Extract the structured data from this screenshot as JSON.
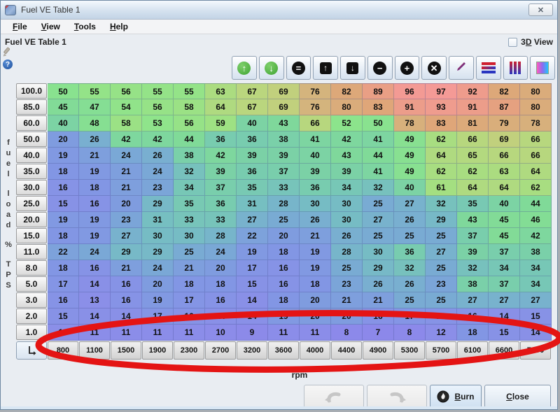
{
  "window": {
    "title": "Fuel VE Table 1",
    "close_icon": "✕",
    "app_icon": "fuel-table-app-icon"
  },
  "menu": {
    "items": [
      {
        "label": "File",
        "u": 0
      },
      {
        "label": "View",
        "u": 0
      },
      {
        "label": "Tools",
        "u": 0
      },
      {
        "label": "Help",
        "u": 0
      }
    ]
  },
  "header": {
    "title": "Fuel VE Table 1",
    "view3d_label": "3D View",
    "view3d_underline": 1,
    "view3d_checked": false
  },
  "rail": {
    "icons": [
      "edit-pencil-icon",
      "help-icon"
    ],
    "help_glyph": "?"
  },
  "toolbar": {
    "icons": [
      "scale-up-icon",
      "scale-down-icon",
      "set-equal-icon",
      "shift-up-icon",
      "shift-down-icon",
      "subtract-icon",
      "add-icon",
      "multiply-icon",
      "edit-pencil-icon",
      "interpolate-horizontal-icon",
      "interpolate-vertical-icon",
      "interpolate-2d-icon"
    ]
  },
  "table": {
    "x_axis_label": "rpm",
    "y_axis_label": "fuel load % TPS",
    "x_bins": [
      "800",
      "1100",
      "1500",
      "1900",
      "2300",
      "2700",
      "3200",
      "3600",
      "4000",
      "4400",
      "4900",
      "5300",
      "5700",
      "6100",
      "6600",
      "7000"
    ],
    "y_bins": [
      "100.0",
      "85.0",
      "60.0",
      "50.0",
      "40.0",
      "35.0",
      "30.0",
      "25.0",
      "20.0",
      "15.0",
      "11.0",
      "8.0",
      "5.0",
      "3.0",
      "2.0",
      "1.0"
    ],
    "values": [
      [
        50,
        55,
        56,
        55,
        55,
        63,
        67,
        69,
        76,
        82,
        89,
        96,
        97,
        92,
        82,
        80
      ],
      [
        45,
        47,
        54,
        56,
        58,
        64,
        67,
        69,
        76,
        80,
        83,
        91,
        93,
        91,
        87,
        80
      ],
      [
        40,
        48,
        58,
        53,
        56,
        59,
        40,
        43,
        66,
        52,
        50,
        78,
        83,
        81,
        79,
        78
      ],
      [
        20,
        26,
        42,
        42,
        44,
        36,
        36,
        38,
        41,
        42,
        41,
        49,
        62,
        66,
        69,
        66
      ],
      [
        19,
        21,
        24,
        26,
        38,
        42,
        39,
        39,
        40,
        43,
        44,
        49,
        64,
        65,
        66,
        66
      ],
      [
        18,
        19,
        21,
        24,
        32,
        39,
        36,
        37,
        39,
        39,
        41,
        49,
        62,
        62,
        63,
        64
      ],
      [
        16,
        18,
        21,
        23,
        34,
        37,
        35,
        33,
        36,
        34,
        32,
        40,
        61,
        64,
        64,
        62
      ],
      [
        15,
        16,
        20,
        29,
        35,
        36,
        31,
        28,
        30,
        30,
        25,
        27,
        32,
        35,
        40,
        44
      ],
      [
        19,
        19,
        23,
        31,
        33,
        33,
        27,
        25,
        26,
        30,
        27,
        26,
        29,
        43,
        45,
        46
      ],
      [
        18,
        19,
        27,
        30,
        30,
        28,
        22,
        20,
        21,
        26,
        25,
        25,
        25,
        37,
        45,
        42
      ],
      [
        22,
        24,
        29,
        29,
        25,
        24,
        19,
        18,
        19,
        28,
        30,
        36,
        27,
        39,
        37,
        38
      ],
      [
        18,
        16,
        21,
        24,
        21,
        20,
        17,
        16,
        19,
        25,
        29,
        32,
        25,
        32,
        34,
        34
      ],
      [
        17,
        14,
        16,
        20,
        18,
        18,
        15,
        16,
        18,
        23,
        26,
        26,
        23,
        38,
        37,
        34
      ],
      [
        16,
        13,
        16,
        19,
        17,
        16,
        14,
        18,
        20,
        21,
        21,
        25,
        25,
        27,
        27,
        27
      ],
      [
        15,
        14,
        14,
        17,
        16,
        14,
        14,
        19,
        20,
        20,
        16,
        17,
        16,
        16,
        14,
        15
      ],
      [
        13,
        11,
        11,
        11,
        11,
        10,
        9,
        11,
        11,
        8,
        7,
        8,
        12,
        18,
        15,
        14
      ]
    ]
  },
  "heatmap": {
    "stops": [
      [
        7,
        [
          140,
          136,
          234
        ]
      ],
      [
        13,
        [
          139,
          143,
          232
        ]
      ],
      [
        18,
        [
          130,
          150,
          228
        ]
      ],
      [
        24,
        [
          122,
          168,
          214
        ]
      ],
      [
        30,
        [
          118,
          188,
          196
        ]
      ],
      [
        36,
        [
          120,
          204,
          175
        ]
      ],
      [
        44,
        [
          128,
          218,
          152
        ]
      ],
      [
        52,
        [
          140,
          228,
          140
        ]
      ],
      [
        60,
        [
          160,
          224,
          130
        ]
      ],
      [
        68,
        [
          190,
          212,
          125
        ]
      ],
      [
        76,
        [
          212,
          180,
          125
        ]
      ],
      [
        84,
        [
          224,
          164,
          120
        ]
      ],
      [
        92,
        [
          238,
          156,
          140
        ]
      ],
      [
        97,
        [
          244,
          154,
          150
        ]
      ]
    ]
  },
  "footer": {
    "undo_icon": "undo-arrow-icon",
    "redo_icon": "redo-arrow-icon",
    "burn_label": "Burn",
    "burn_underline": 0,
    "burn_icon": "burn-icon",
    "close_label": "Close",
    "close_underline": 0
  },
  "annotation": {
    "shape": "hand-drawn-ellipse",
    "color": "#e41414",
    "circles": "1.0 load row"
  }
}
